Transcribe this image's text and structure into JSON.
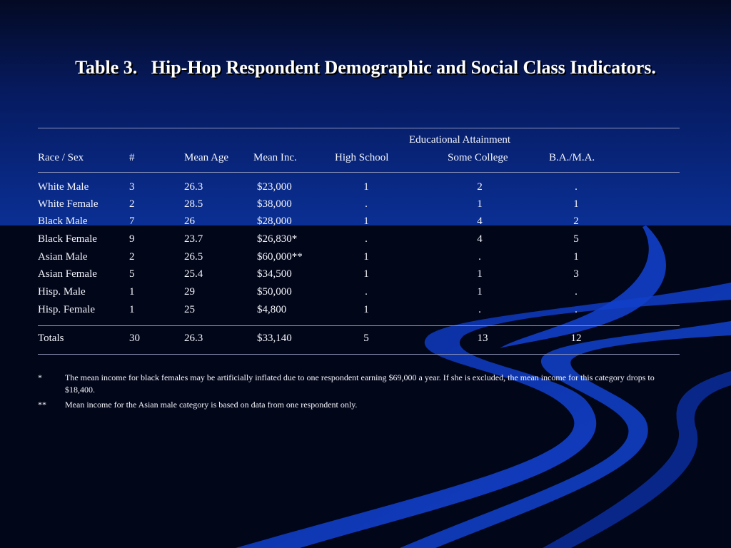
{
  "slide": {
    "title": "Table 3.   Hip-Hop Respondent Demographic and Social Class Indicators."
  },
  "table": {
    "group_header": "Educational Attainment",
    "headers": {
      "race_sex": "Race / Sex",
      "count": "#",
      "mean_age": "Mean Age",
      "mean_inc": "Mean Inc.",
      "high_school": "High School",
      "some_college": "Some College",
      "ba_ma": "B.A./M.A."
    },
    "rows": [
      {
        "race_sex": "White Male",
        "count": "3",
        "mean_age": "26.3",
        "mean_inc": "$23,000",
        "high_school": "1",
        "some_college": "2",
        "ba_ma": "."
      },
      {
        "race_sex": "White Female",
        "count": "2",
        "mean_age": "28.5",
        "mean_inc": "$38,000",
        "high_school": ".",
        "some_college": "1",
        "ba_ma": "1"
      },
      {
        "race_sex": "Black Male",
        "count": "7",
        "mean_age": "26",
        "mean_inc": "$28,000",
        "high_school": "1",
        "some_college": "4",
        "ba_ma": "2"
      },
      {
        "race_sex": "Black Female",
        "count": "9",
        "mean_age": "23.7",
        "mean_inc": "$26,830*",
        "high_school": ".",
        "some_college": "4",
        "ba_ma": "5"
      },
      {
        "race_sex": "Asian Male",
        "count": "2",
        "mean_age": "26.5",
        "mean_inc": "$60,000**",
        "high_school": "1",
        "some_college": ".",
        "ba_ma": "1"
      },
      {
        "race_sex": "Asian Female",
        "count": "5",
        "mean_age": "25.4",
        "mean_inc": "$34,500",
        "high_school": "1",
        "some_college": "1",
        "ba_ma": "3"
      },
      {
        "race_sex": "Hisp. Male",
        "count": "1",
        "mean_age": "29",
        "mean_inc": "$50,000",
        "high_school": ".",
        "some_college": "1",
        "ba_ma": "."
      },
      {
        "race_sex": "Hisp. Female",
        "count": "1",
        "mean_age": "25",
        "mean_inc": "$4,800",
        "high_school": "1",
        "some_college": ".",
        "ba_ma": "."
      }
    ],
    "totals": {
      "race_sex": "Totals",
      "count": "30",
      "mean_age": "26.3",
      "mean_inc": "$33,140",
      "high_school": "5",
      "some_college": "13",
      "ba_ma": "12"
    }
  },
  "footnotes": [
    {
      "mark": "*",
      "text": "The mean income for black females may be artificially inflated due to one respondent earning $69,000 a year. If she is excluded, the mean income for this category drops to $18,400."
    },
    {
      "mark": "**",
      "text": "Mean income for the Asian male category is based on data from one respondent only."
    }
  ],
  "colors": {
    "background": "#020619",
    "header_gradient_end": "#0a2f94",
    "swoosh": "#0d3bb8",
    "rule": "#8c93b6"
  }
}
